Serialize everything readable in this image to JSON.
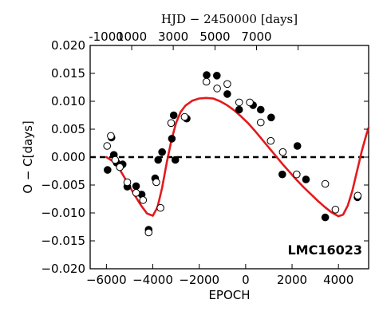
{
  "chart_data": {
    "type": "scatter",
    "title": "",
    "xlabel": "EPOCH",
    "ylabel": "O − C[days]",
    "top_xlabel": "HJD − 2450000 [days]",
    "annotation": "LMC16023",
    "xlim": [
      -6700,
      5300
    ],
    "ylim": [
      -0.02,
      0.02
    ],
    "x_ticks": [
      -6000,
      -4000,
      -2000,
      0,
      2000,
      4000
    ],
    "x_tick_labels": [
      "−6000",
      "−4000",
      "−2000",
      "0",
      "2000",
      "4000"
    ],
    "y_ticks": [
      -0.02,
      -0.015,
      -0.01,
      -0.005,
      0.0,
      0.005,
      0.01,
      0.015,
      0.02
    ],
    "y_tick_labels": [
      "−0.020",
      "−0.015",
      "−0.010",
      "−0.005",
      "0.000",
      "0.005",
      "0.010",
      "0.015",
      "0.020"
    ],
    "top_ticks_at_epoch": [
      -6700,
      -4910,
      -3120,
      -1320,
      470,
      2260
    ],
    "top_tick_labels": [
      "-1000",
      "1000",
      "3000",
      "5000",
      "7000",
      ""
    ],
    "top_tick_labels_shown": [
      "-1000",
      "1000",
      "3000",
      "5000",
      "7000"
    ],
    "grid": false,
    "reference_line": {
      "y": 0.0,
      "style": "dashed",
      "color": "#000000"
    },
    "colors": {
      "model": "#e31a1c",
      "filled": "#000000",
      "open": "#000000"
    },
    "series": [
      {
        "marker": "filled",
        "x": [
          -5950,
          -5780,
          -5680,
          -5560,
          -5420,
          -5300,
          -5100,
          -4720,
          -4480,
          -4180,
          -3900,
          -3770,
          -3600,
          -3180,
          -3100,
          -3030,
          -2540,
          -1680,
          -1240,
          -790,
          -280,
          320,
          650,
          1100,
          1580,
          2230,
          2600,
          3430,
          4820
        ],
        "y": [
          -0.0023,
          0.0035,
          0.0004,
          -0.001,
          -0.0015,
          -0.0013,
          -0.0053,
          -0.0052,
          -0.0067,
          -0.013,
          -0.0038,
          -0.0005,
          0.0009,
          0.0033,
          0.0075,
          -0.0005,
          0.0069,
          0.0147,
          0.0146,
          0.0113,
          0.0085,
          0.0093,
          0.0085,
          0.0071,
          -0.0031,
          0.002,
          -0.004,
          -0.0108,
          -0.0072
        ]
      },
      {
        "marker": "open",
        "x": [
          -5970,
          -5810,
          -5620,
          -5420,
          -5100,
          -4720,
          -4420,
          -4180,
          -3850,
          -3670,
          -3210,
          -2630,
          -1690,
          -1230,
          -790,
          -280,
          180,
          650,
          1080,
          1600,
          2200,
          3430,
          3870,
          4830
        ],
        "y": [
          0.002,
          0.0038,
          -0.0005,
          -0.0018,
          -0.0045,
          -0.0064,
          -0.0077,
          -0.0135,
          -0.0045,
          -0.0091,
          0.0061,
          0.0072,
          0.0135,
          0.0123,
          0.0131,
          0.0098,
          0.0098,
          0.0062,
          0.0029,
          0.0009,
          -0.0031,
          -0.0048,
          -0.0094,
          -0.0069
        ]
      }
    ],
    "model_curve": {
      "x": [
        -6000,
        -5700,
        -5400,
        -5100,
        -4800,
        -4500,
        -4250,
        -4000,
        -3800,
        -3600,
        -3400,
        -3200,
        -3000,
        -2800,
        -2600,
        -2300,
        -2000,
        -1700,
        -1400,
        -1100,
        -800,
        -500,
        -200,
        100,
        400,
        700,
        1000,
        1300,
        1600,
        1900,
        2200,
        2500,
        2800,
        3100,
        3400,
        3700,
        4000,
        4200,
        4400,
        4600,
        4800,
        5000,
        5200,
        5300
      ],
      "y": [
        0.0,
        -0.0008,
        -0.0024,
        -0.0045,
        -0.0067,
        -0.0087,
        -0.0101,
        -0.0105,
        -0.009,
        -0.0055,
        -0.001,
        0.003,
        0.0061,
        0.0081,
        0.0092,
        0.0101,
        0.0105,
        0.0106,
        0.0105,
        0.01,
        0.0093,
        0.0084,
        0.0073,
        0.0061,
        0.0047,
        0.0032,
        0.0017,
        0.0002,
        -0.0013,
        -0.0027,
        -0.0041,
        -0.0054,
        -0.0066,
        -0.0078,
        -0.0089,
        -0.0099,
        -0.0106,
        -0.0103,
        -0.0087,
        -0.006,
        -0.0025,
        0.001,
        0.004,
        0.0053
      ]
    }
  }
}
